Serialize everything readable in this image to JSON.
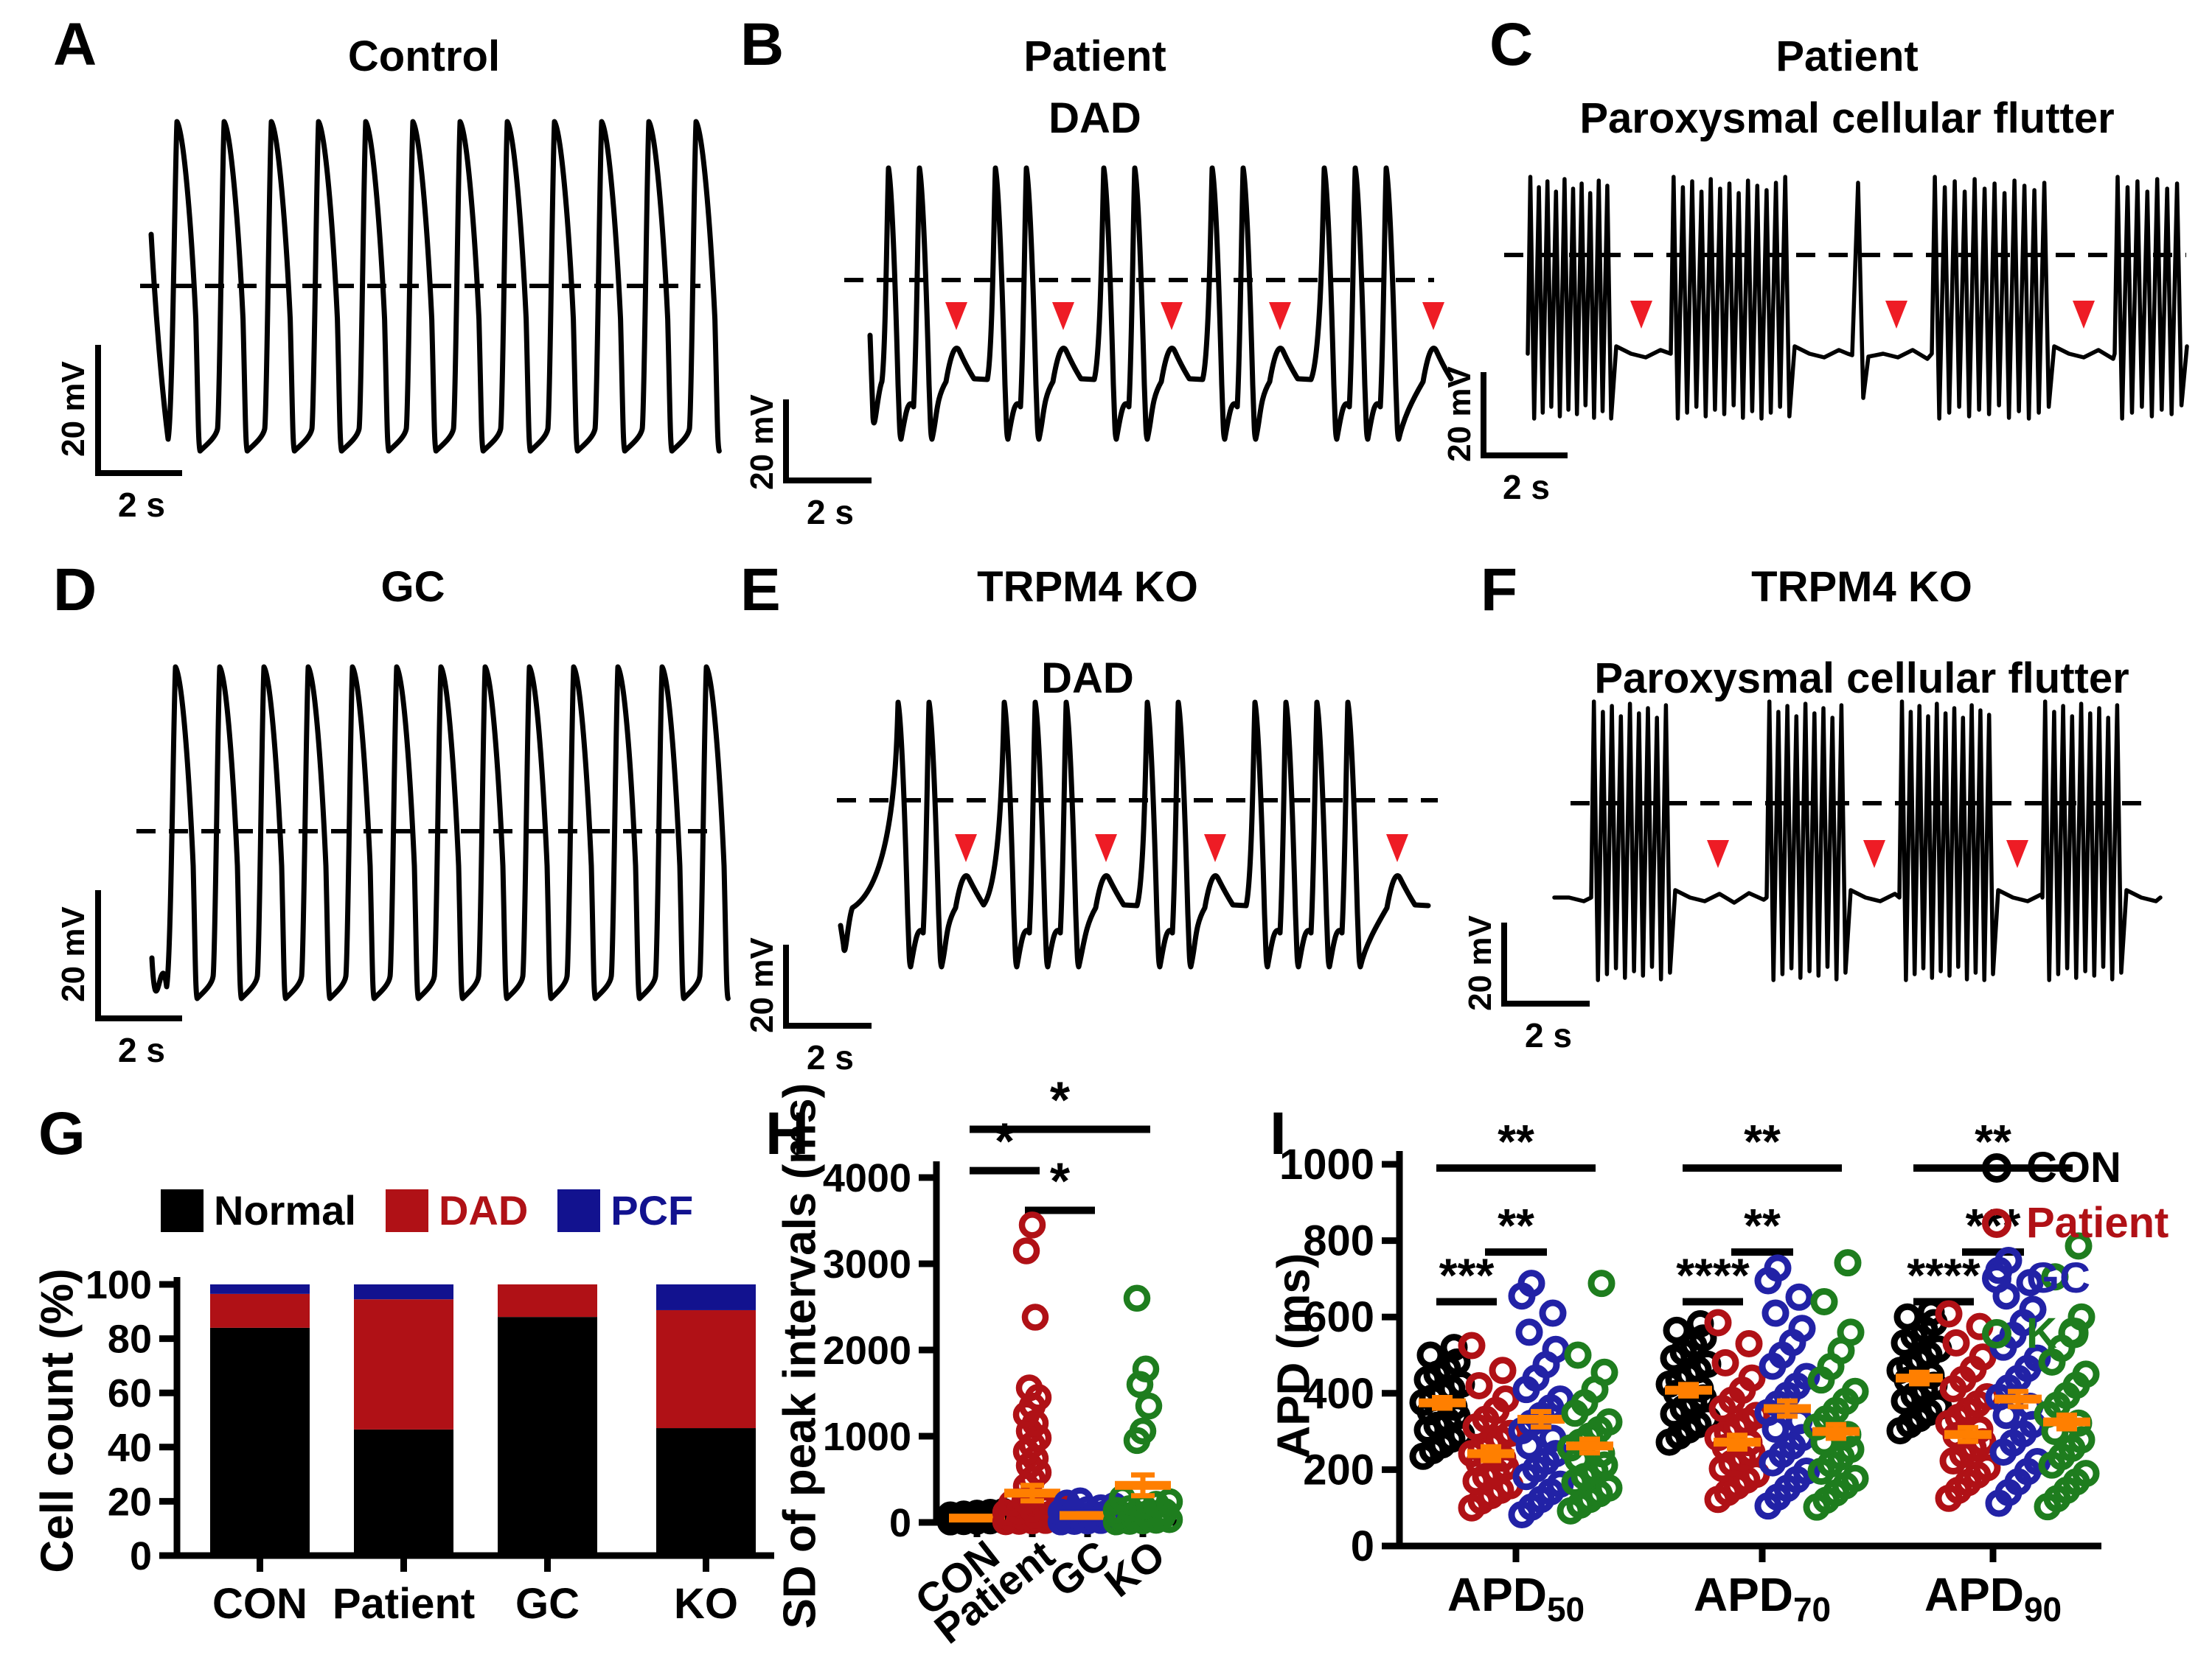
{
  "colors": {
    "trace": "#000000",
    "arrow_red": "#EE1C25",
    "mean_orange": "#FF7F00",
    "con_black": "#000000",
    "patient_red": "#B01116",
    "gc_blue": "#2222A6",
    "ko_green": "#1E7D1E",
    "pcf_blue": "#12128F"
  },
  "scale_bar": {
    "vertical": "20 mV",
    "horizontal": "2 s"
  },
  "trace_panels": [
    {
      "letter": "A",
      "title_lines": [
        "Control"
      ],
      "kind": "regular",
      "n_spikes": 12,
      "n_arrowheads": 0
    },
    {
      "letter": "B",
      "title_lines": [
        "Patient",
        "DAD"
      ],
      "kind": "dad",
      "spike_groups": [
        2,
        2,
        2,
        2,
        3
      ],
      "n_arrowheads": 5
    },
    {
      "letter": "C",
      "title_lines": [
        "Patient",
        "Paroxysmal cellular flutter"
      ],
      "kind": "flutter",
      "n_bursts": 4,
      "n_arrowheads": 3
    },
    {
      "letter": "D",
      "title_lines": [
        "GC"
      ],
      "kind": "regular",
      "n_spikes": 13,
      "n_arrowheads": 0
    },
    {
      "letter": "E",
      "title_lines": [
        "TRPM4 KO",
        "DAD"
      ],
      "kind": "dad",
      "spike_groups": [
        2,
        3,
        2,
        4
      ],
      "n_arrowheads": 4
    },
    {
      "letter": "F",
      "title_lines": [
        "TRPM4 KO",
        "Paroxysmal cellular flutter"
      ],
      "kind": "flutter",
      "n_bursts": 4,
      "n_arrowheads": 3
    }
  ],
  "chart_data": [
    {
      "panel_letter": "G",
      "type": "bar",
      "stacked": true,
      "ylabel": "Cell count (%)",
      "ylim": [
        0,
        100
      ],
      "yticks": [
        0,
        20,
        40,
        60,
        80,
        100
      ],
      "categories": [
        "CON",
        "Patient",
        "GC",
        "KO"
      ],
      "legend_position": "top",
      "series": [
        {
          "name": "Normal",
          "color": "#000000",
          "values": [
            84,
            46.5,
            88,
            47
          ]
        },
        {
          "name": "DAD",
          "color": "#B01116",
          "values": [
            12.5,
            48,
            12,
            43.5
          ]
        },
        {
          "name": "PCF",
          "color": "#12128F",
          "values": [
            3.5,
            5.5,
            0,
            9.5
          ]
        }
      ]
    },
    {
      "panel_letter": "H",
      "type": "scatter",
      "ylabel": "SD of peak intervals (ms)",
      "ylim": [
        0,
        4000
      ],
      "yticks": [
        0,
        1000,
        2000,
        3000,
        4000
      ],
      "categories": [
        "CON",
        "Patient",
        "GC",
        "KO"
      ],
      "series": [
        {
          "name": "CON",
          "color": "#000000",
          "mean": 50,
          "sem": 12,
          "values": [
            5,
            9,
            13,
            17,
            21,
            26,
            31,
            36,
            42,
            48,
            55,
            62,
            70,
            78,
            88,
            98,
            108,
            118,
            128
          ]
        },
        {
          "name": "Patient",
          "color": "#B01116",
          "mean": 340,
          "sem": 90,
          "values": [
            8,
            12,
            18,
            22,
            28,
            35,
            42,
            48,
            55,
            62,
            70,
            80,
            90,
            100,
            115,
            130,
            150,
            170,
            195,
            220,
            250,
            420,
            500,
            580,
            660,
            740,
            820,
            900,
            980,
            1060,
            1150,
            1250,
            1350,
            1450,
            1560,
            2380,
            3150,
            3450
          ]
        },
        {
          "name": "GC",
          "color": "#2222A6",
          "mean": 80,
          "sem": 20,
          "values": [
            6,
            11,
            16,
            22,
            28,
            35,
            42,
            50,
            58,
            67,
            76,
            86,
            96,
            108,
            120,
            135,
            150,
            170,
            195,
            225,
            250
          ]
        },
        {
          "name": "KO",
          "color": "#1E7D1E",
          "mean": 430,
          "sem": 120,
          "values": [
            6,
            12,
            18,
            25,
            32,
            40,
            48,
            55,
            65,
            75,
            85,
            95,
            110,
            125,
            140,
            160,
            185,
            210,
            240,
            280,
            950,
            1060,
            1350,
            1600,
            1780,
            2600
          ]
        }
      ],
      "significance": [
        {
          "a": 0,
          "b": 1,
          "label": "*"
        },
        {
          "a": 1,
          "b": 2,
          "label": "*"
        },
        {
          "a": 0,
          "b": 3,
          "label": "*"
        }
      ]
    },
    {
      "panel_letter": "I",
      "type": "scatter",
      "grouped": true,
      "ylabel": "APD (ms)",
      "ylim": [
        0,
        1000
      ],
      "yticks": [
        0,
        200,
        400,
        600,
        800,
        1000
      ],
      "group_label_base": "APD",
      "group_label_subs": [
        "50",
        "70",
        "90"
      ],
      "series": [
        {
          "name": "CON",
          "color": "#000000",
          "means": [
            375,
            408,
            440
          ],
          "sems": [
            14,
            15,
            15
          ],
          "values_by_group": [
            [
              235,
              250,
              265,
              280,
              292,
              304,
              316,
              328,
              340,
              352,
              364,
              376,
              388,
              400,
              412,
              424,
              436,
              450,
              465,
              482,
              500,
              520
            ],
            [
              272,
              288,
              304,
              318,
              332,
              346,
              360,
              374,
              388,
              400,
              412,
              424,
              436,
              448,
              462,
              476,
              492,
              508,
              526,
              545,
              565,
              582
            ],
            [
              302,
              318,
              334,
              350,
              365,
              380,
              394,
              408,
              421,
              434,
              447,
              460,
              473,
              487,
              501,
              516,
              532,
              549,
              567,
              585,
              600,
              612
            ]
          ]
        },
        {
          "name": "Patient",
          "color": "#B01116",
          "means": [
            242,
            272,
            292
          ],
          "sems": [
            18,
            18,
            18
          ],
          "values_by_group": [
            [
              100,
              118,
              132,
              146,
              158,
              170,
              182,
              194,
              206,
              218,
              230,
              242,
              254,
              266,
              280,
              295,
              312,
              332,
              355,
              385,
              420,
              460,
              525
            ],
            [
              122,
              140,
              157,
              173,
              188,
              203,
              217,
              231,
              245,
              258,
              271,
              284,
              297,
              311,
              326,
              342,
              360,
              382,
              408,
              440,
              480,
              530,
              585
            ],
            [
              125,
              146,
              166,
              186,
              205,
              223,
              240,
              257,
              273,
              289,
              305,
              321,
              337,
              354,
              372,
              391,
              412,
              436,
              463,
              495,
              532,
              575,
              608
            ]
          ]
        },
        {
          "name": "GC",
          "color": "#2222A6",
          "means": [
            332,
            360,
            385
          ],
          "sems": [
            20,
            20,
            20
          ],
          "values_by_group": [
            [
              82,
              102,
              122,
              142,
              162,
              182,
              202,
              222,
              242,
              262,
              282,
              302,
              322,
              342,
              362,
              385,
              410,
              440,
              475,
              515,
              560,
              610,
              655,
              688
            ],
            [
              105,
              128,
              151,
              174,
              196,
              218,
              240,
              262,
              284,
              306,
              328,
              350,
              372,
              395,
              419,
              444,
              471,
              500,
              533,
              570,
              610,
              652,
              695,
              728
            ],
            [
              112,
              140,
              168,
              195,
              221,
              246,
              270,
              294,
              318,
              342,
              366,
              390,
              414,
              439,
              465,
              492,
              521,
              552,
              585,
              620,
              655,
              690,
              722,
              748
            ]
          ]
        },
        {
          "name": "KO",
          "color": "#1E7D1E",
          "means": [
            262,
            300,
            325
          ],
          "sems": [
            18,
            18,
            18
          ],
          "values_by_group": [
            [
              92,
              107,
              122,
              137,
              152,
              167,
              182,
              197,
              212,
              227,
              242,
              257,
              272,
              288,
              305,
              325,
              348,
              375,
              410,
              455,
              500,
              688
            ],
            [
              102,
              120,
              139,
              158,
              177,
              196,
              215,
              234,
              253,
              272,
              292,
              312,
              333,
              355,
              379,
              405,
              435,
              470,
              512,
              560,
              640,
              742
            ],
            [
              103,
              124,
              146,
              168,
              190,
              212,
              234,
              256,
              278,
              300,
              322,
              345,
              369,
              394,
              421,
              450,
              482,
              518,
              558,
              600,
              705,
              786
            ]
          ]
        }
      ],
      "significance": [
        [
          "***",
          "**",
          "**"
        ],
        [
          "****",
          "**",
          "**"
        ],
        [
          "****",
          "***",
          "**"
        ]
      ]
    }
  ]
}
